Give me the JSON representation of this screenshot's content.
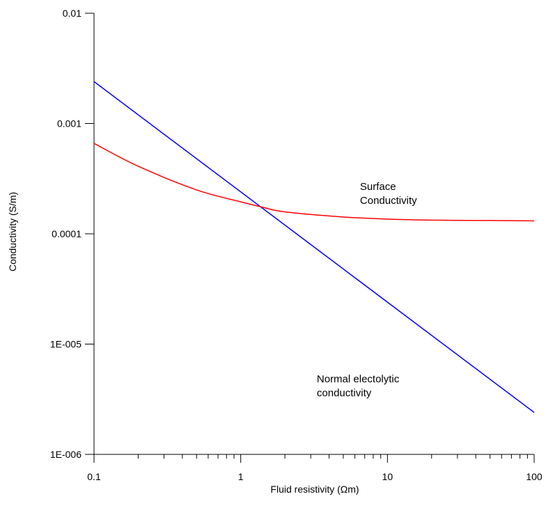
{
  "chart_data": {
    "type": "line",
    "title": "",
    "xlabel": "Fluid resistivity (Ωm)",
    "ylabel": "Conductivity (S/m)",
    "xscale": "log",
    "yscale": "log",
    "xlim": [
      0.1,
      100
    ],
    "ylim": [
      1e-06,
      0.01
    ],
    "x_tick_labels": [
      "0.1",
      "1",
      "10",
      "100"
    ],
    "y_tick_labels": [
      "1E-006",
      "1E-005",
      "0.0001",
      "0.001",
      "0.01"
    ],
    "grid": false,
    "series": [
      {
        "color": "#0000ff",
        "x": [
          0.1,
          1.39,
          100
        ],
        "y": [
          0.0024,
          0.000175,
          2.4e-06
        ]
      },
      {
        "color": "#ff0000",
        "x": [
          0.1,
          0.2,
          0.5,
          1,
          1.39,
          2,
          5,
          10,
          20,
          50,
          100
        ],
        "y": [
          0.00066,
          0.00041,
          0.00025,
          0.000195,
          0.000175,
          0.000158,
          0.000142,
          0.000136,
          0.000133,
          0.000132,
          0.000131
        ]
      }
    ],
    "annotations": [
      {
        "lines": [
          "Surface",
          "Conductivity"
        ],
        "x": 6.5,
        "y": 0.00025
      },
      {
        "lines": [
          "Normal electolytic",
          "conductivity"
        ],
        "x": 3.3,
        "y": 4.5e-06
      }
    ]
  }
}
